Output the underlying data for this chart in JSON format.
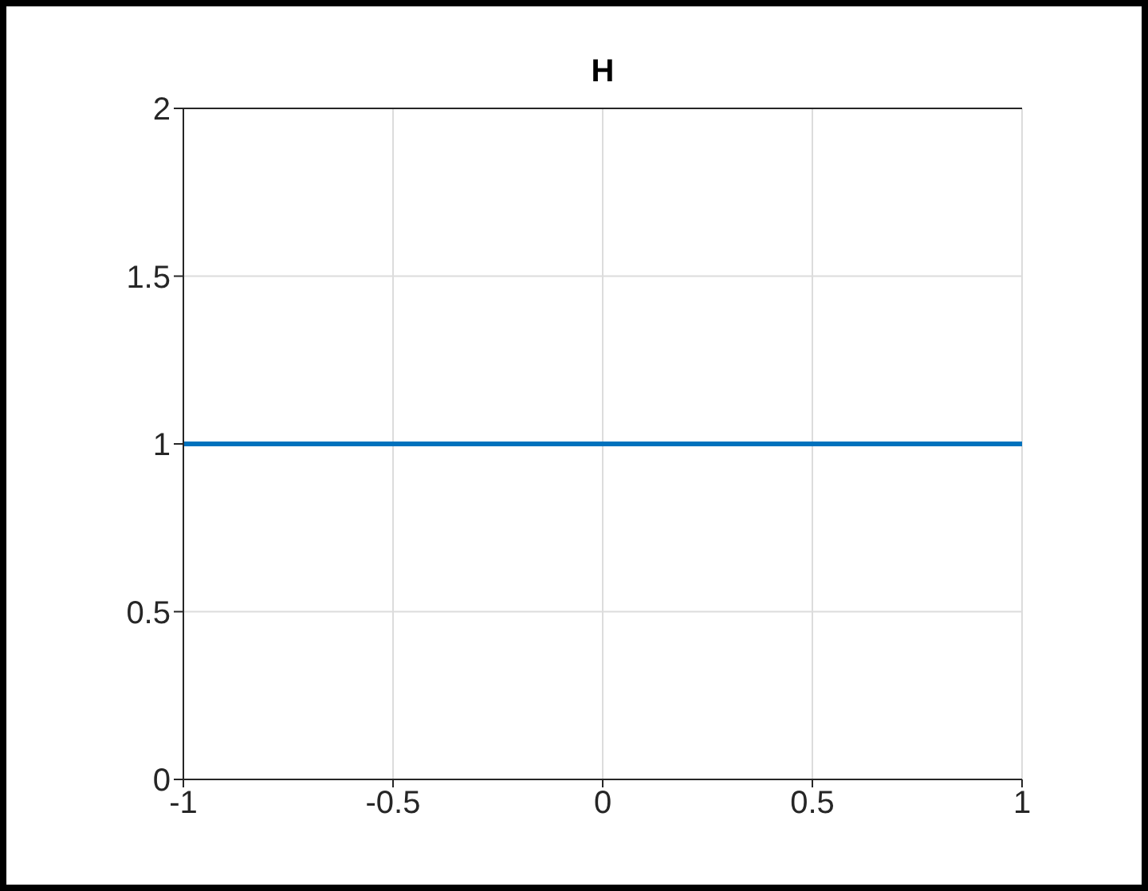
{
  "chart_data": {
    "type": "line",
    "title": "H",
    "x": [
      -1,
      1
    ],
    "series": [
      {
        "color": "#0072bd",
        "values": [
          1,
          1
        ]
      }
    ],
    "xlim": [
      -1,
      1
    ],
    "xticks": [
      -1,
      -0.5,
      0,
      0.5,
      1
    ],
    "ylim": [
      0,
      2
    ],
    "yticks": [
      0,
      0.5,
      1,
      1.5,
      2
    ],
    "grid": true,
    "marker": "none",
    "line_style": "solid"
  }
}
